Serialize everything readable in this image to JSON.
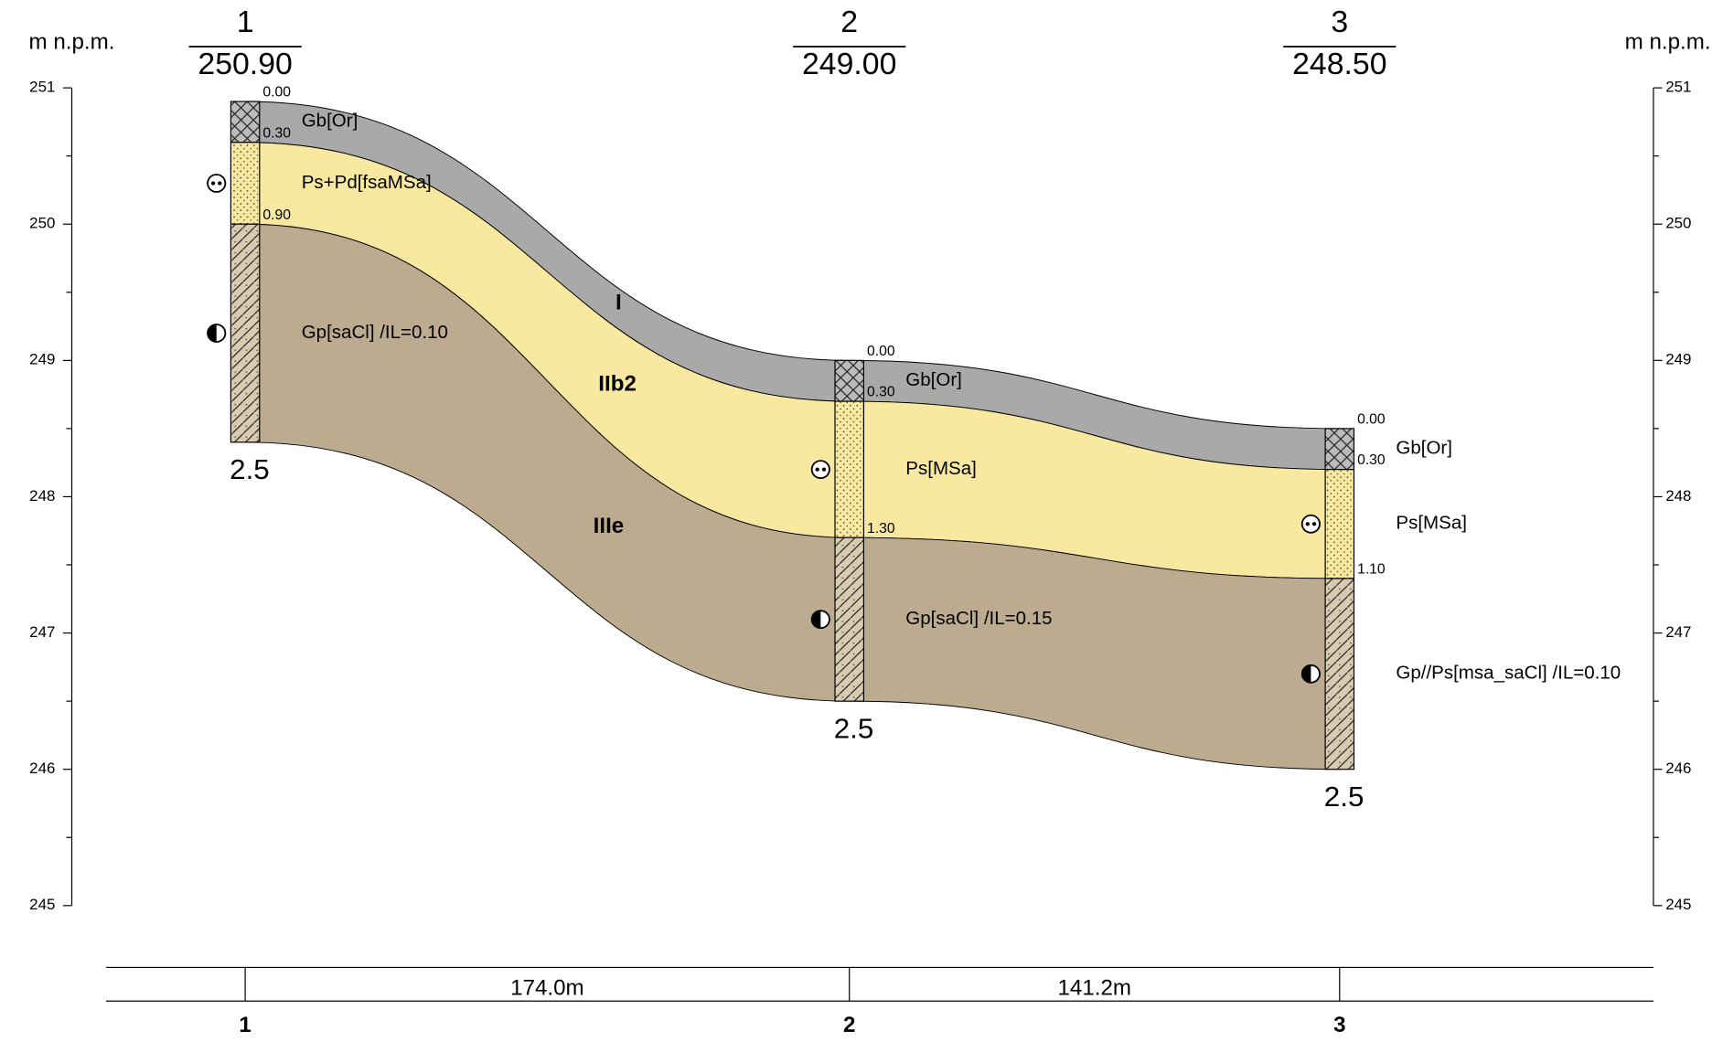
{
  "axis": {
    "label_left": "m n.p.m.",
    "label_right": "m n.p.m.",
    "ticks": [
      "251",
      "250",
      "249",
      "248",
      "247",
      "246",
      "245"
    ]
  },
  "boreholes": [
    {
      "id": "1",
      "elevation": "250.90",
      "depth": "2.5",
      "layers": [
        {
          "top": "0.00",
          "soil": "Gb[Or]"
        },
        {
          "top": "0.30",
          "soil": "Ps+Pd[fsaMSa]"
        },
        {
          "top": "0.90",
          "soil": "Gp[saCl] /IL=0.10"
        }
      ]
    },
    {
      "id": "2",
      "elevation": "249.00",
      "depth": "2.5",
      "layers": [
        {
          "top": "0.00",
          "soil": "Gb[Or]"
        },
        {
          "top": "0.30",
          "soil": "Ps[MSa]"
        },
        {
          "top": "1.30",
          "soil": "Gp[saCl] /IL=0.15"
        }
      ]
    },
    {
      "id": "3",
      "elevation": "248.50",
      "depth": "2.5",
      "layers": [
        {
          "top": "0.00",
          "soil": "Gb[Or]"
        },
        {
          "top": "0.30",
          "soil": "Ps[MSa]"
        },
        {
          "top": "1.10",
          "soil": "Gp//Ps[msa_saCl] /IL=0.10"
        }
      ]
    }
  ],
  "distances": [
    "174.0m",
    "141.2m"
  ],
  "layer_names": [
    "I",
    "IIb2",
    "IIIe"
  ]
}
